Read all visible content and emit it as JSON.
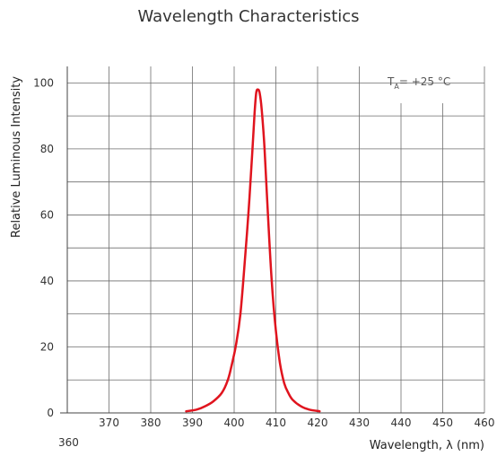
{
  "chart_data": {
    "type": "line",
    "title": "Wavelength Characteristics",
    "xlabel": "Wavelength, λ (nm)",
    "ylabel": "Relative Luminous Intensity",
    "xlim": [
      360,
      460
    ],
    "ylim": [
      0,
      105
    ],
    "xticks": [
      360,
      370,
      380,
      390,
      400,
      410,
      420,
      430,
      440,
      450,
      460
    ],
    "yticks": [
      0,
      20,
      40,
      60,
      80,
      100
    ],
    "grid": true,
    "annotation": {
      "prefix": "T",
      "subscript": "A",
      "suffix": "= +25 °C"
    },
    "series": [
      {
        "color": "#e0141e",
        "x": [
          388.5,
          391,
          393,
          395,
          397,
          398.5,
          399.5,
          400.5,
          401.5,
          402.5,
          403.5,
          404.3,
          404.9,
          405.3,
          405.7,
          406.1,
          406.6,
          407.3,
          408.1,
          409,
          410,
          411,
          412,
          413,
          414,
          416,
          418,
          420.5
        ],
        "y": [
          0.5,
          1,
          2,
          3.5,
          6,
          10,
          15,
          21,
          30,
          45,
          62,
          78,
          91,
          97,
          98,
          97,
          92,
          80,
          60,
          40,
          25,
          15,
          9,
          6,
          4,
          2,
          1,
          0.5
        ]
      }
    ]
  }
}
